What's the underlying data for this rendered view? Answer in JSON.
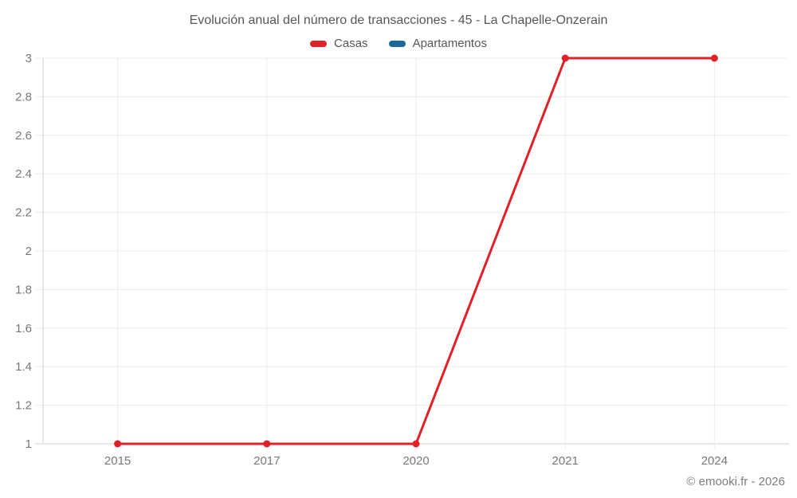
{
  "chart_data": {
    "type": "line",
    "title": "Evolución anual del número de transacciones - 45 - La Chapelle-Onzerain",
    "categories": [
      "2015",
      "2017",
      "2020",
      "2021",
      "2024"
    ],
    "series": [
      {
        "name": "Casas",
        "color": "#e02127",
        "values": [
          1,
          1,
          1,
          3,
          3
        ]
      },
      {
        "name": "Apartamentos",
        "color": "#17689b",
        "values": []
      }
    ],
    "xlabel": "",
    "ylabel": "",
    "ylim": [
      1,
      3
    ],
    "yticks": [
      1,
      1.2,
      1.4,
      1.6,
      1.8,
      2,
      2.2,
      2.4,
      2.6,
      2.8,
      3
    ],
    "grid": true,
    "legend_position": "top",
    "marker": "circle"
  },
  "footer": {
    "credit": "© emooki.fr - 2026"
  }
}
